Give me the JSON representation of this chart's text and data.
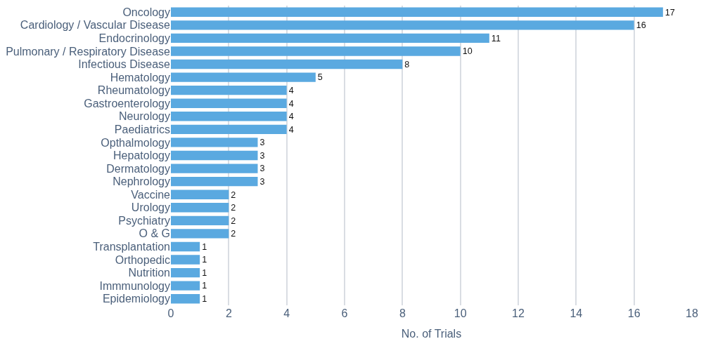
{
  "chart_data": {
    "type": "bar",
    "orientation": "horizontal",
    "xlabel": "No. of Trials",
    "categories": [
      "Oncology",
      "Cardiology / Vascular Disease",
      "Endocrinology",
      "Pulmonary / Respiratory Disease",
      "Infectious Disease",
      "Hematology",
      "Rheumatology",
      "Gastroenterology",
      "Neurology",
      "Paediatrics",
      "Opthalmology",
      "Hepatology",
      "Dermatology",
      "Nephrology",
      "Vaccine",
      "Urology",
      "Psychiatry",
      "O & G",
      "Transplantation",
      "Orthopedic",
      "Nutrition",
      "Immmunology",
      "Epidemiology"
    ],
    "values": [
      17,
      16,
      11,
      10,
      8,
      5,
      4,
      4,
      4,
      4,
      3,
      3,
      3,
      3,
      2,
      2,
      2,
      2,
      1,
      1,
      1,
      1,
      1
    ],
    "color": "#5aa9e0",
    "xlim": [
      0,
      18
    ],
    "xticks": [
      0,
      2,
      4,
      6,
      8,
      10,
      12,
      14,
      16,
      18
    ],
    "grid": "x",
    "data_labels": true,
    "legend": false
  }
}
